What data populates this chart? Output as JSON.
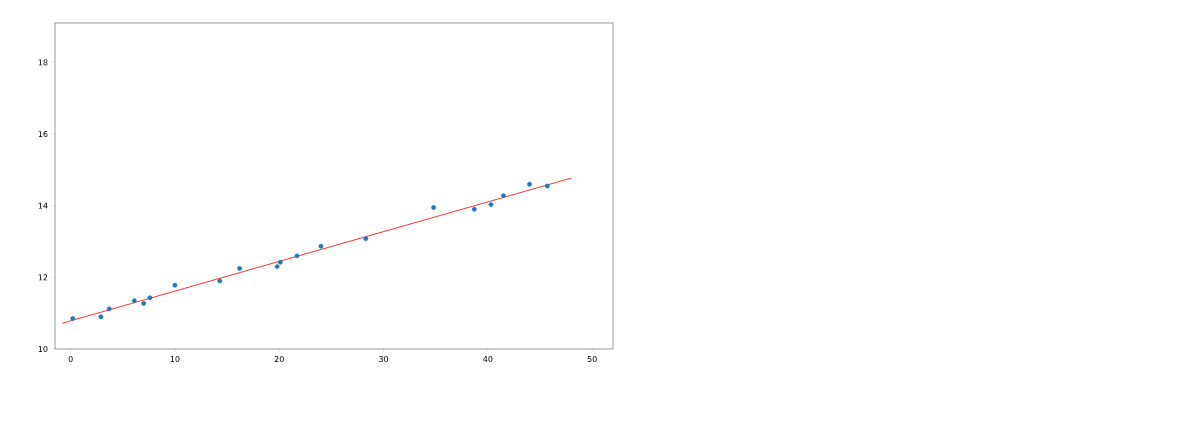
{
  "chart_data": {
    "type": "scatter",
    "xlim": [
      -1.5,
      52
    ],
    "ylim": [
      10,
      19.1
    ],
    "xticks": [
      0,
      10,
      20,
      30,
      40,
      50
    ],
    "yticks": [
      10,
      12,
      14,
      16,
      18
    ],
    "grid": false,
    "series": [
      {
        "color": "#1f77b4",
        "marker": "circle",
        "x": [
          0.2,
          2.9,
          3.7,
          6.1,
          7.0,
          7.6,
          10.0,
          14.3,
          16.2,
          19.8,
          20.1,
          21.7,
          24.0,
          28.3,
          34.8,
          38.7,
          40.3,
          41.5,
          44.0,
          45.7
        ],
        "values": [
          10.85,
          10.9,
          11.12,
          11.35,
          11.27,
          11.43,
          11.78,
          11.9,
          12.25,
          12.3,
          12.42,
          12.6,
          12.87,
          13.08,
          13.95,
          13.9,
          14.03,
          14.28,
          14.6,
          14.55
        ]
      },
      {
        "type": "line",
        "color": "#ff0000",
        "marker": "none",
        "x": [
          -0.8,
          48
        ],
        "values": [
          10.72,
          14.77
        ]
      }
    ]
  }
}
